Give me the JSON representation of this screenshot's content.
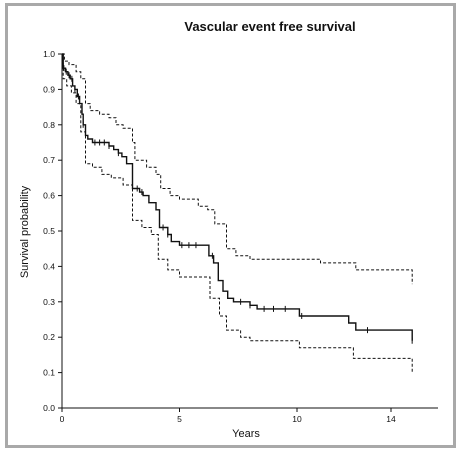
{
  "chart_data": {
    "type": "line",
    "title": "Vascular event free survival",
    "xlabel": "Years",
    "ylabel": "Survival probability",
    "xlim": [
      0,
      16
    ],
    "ylim": [
      0,
      1.0
    ],
    "x_ticks": [
      0,
      5,
      10,
      14
    ],
    "y_ticks": [
      0,
      0.1,
      0.2,
      0.3,
      0.4,
      0.5,
      0.6,
      0.7,
      0.8,
      0.9,
      1.0
    ],
    "grid": false,
    "legend": "none",
    "series": [
      {
        "role": "estimate",
        "style": "solid",
        "color": "#111111",
        "points": [
          [
            0,
            1.0
          ],
          [
            0.05,
            0.96
          ],
          [
            0.15,
            0.95
          ],
          [
            0.25,
            0.94
          ],
          [
            0.35,
            0.93
          ],
          [
            0.45,
            0.91
          ],
          [
            0.55,
            0.9
          ],
          [
            0.65,
            0.88
          ],
          [
            0.75,
            0.86
          ],
          [
            0.85,
            0.83
          ],
          [
            0.9,
            0.8
          ],
          [
            1.0,
            0.77
          ],
          [
            1.1,
            0.76
          ],
          [
            1.3,
            0.75
          ],
          [
            2.0,
            0.74
          ],
          [
            2.2,
            0.73
          ],
          [
            2.4,
            0.72
          ],
          [
            2.55,
            0.71
          ],
          [
            2.75,
            0.69
          ],
          [
            3.0,
            0.62
          ],
          [
            3.3,
            0.61
          ],
          [
            3.45,
            0.6
          ],
          [
            3.7,
            0.58
          ],
          [
            4.0,
            0.56
          ],
          [
            4.15,
            0.51
          ],
          [
            4.5,
            0.49
          ],
          [
            4.65,
            0.47
          ],
          [
            5.0,
            0.46
          ],
          [
            6.0,
            0.46
          ],
          [
            6.25,
            0.43
          ],
          [
            6.45,
            0.41
          ],
          [
            6.65,
            0.36
          ],
          [
            6.85,
            0.33
          ],
          [
            7.05,
            0.31
          ],
          [
            7.3,
            0.3
          ],
          [
            8.0,
            0.29
          ],
          [
            8.3,
            0.28
          ],
          [
            9.8,
            0.28
          ],
          [
            10.1,
            0.26
          ],
          [
            12.2,
            0.24
          ],
          [
            12.5,
            0.22
          ],
          [
            14.7,
            0.22
          ],
          [
            14.9,
            0.19
          ]
        ],
        "censor_marks": [
          0.08,
          0.18,
          0.3,
          0.42,
          0.55,
          0.7,
          0.9,
          1.4,
          1.6,
          1.8,
          2.0,
          2.4,
          3.2,
          3.4,
          4.3,
          4.5,
          5.1,
          5.4,
          5.7,
          6.4,
          7.6,
          8.0,
          8.6,
          9.0,
          9.5,
          10.2,
          13.0,
          14.9
        ]
      },
      {
        "role": "upper-confidence",
        "style": "dashed",
        "color": "#111111",
        "points": [
          [
            0,
            1.0
          ],
          [
            0.1,
            0.98
          ],
          [
            0.3,
            0.97
          ],
          [
            0.6,
            0.95
          ],
          [
            0.8,
            0.93
          ],
          [
            1.0,
            0.86
          ],
          [
            1.2,
            0.84
          ],
          [
            1.6,
            0.83
          ],
          [
            2.0,
            0.82
          ],
          [
            2.3,
            0.8
          ],
          [
            2.6,
            0.79
          ],
          [
            3.0,
            0.75
          ],
          [
            3.1,
            0.7
          ],
          [
            3.6,
            0.68
          ],
          [
            4.0,
            0.66
          ],
          [
            4.2,
            0.62
          ],
          [
            4.6,
            0.6
          ],
          [
            5.0,
            0.59
          ],
          [
            5.8,
            0.57
          ],
          [
            6.2,
            0.56
          ],
          [
            6.5,
            0.52
          ],
          [
            7.0,
            0.45
          ],
          [
            7.4,
            0.43
          ],
          [
            8.0,
            0.42
          ],
          [
            11.0,
            0.41
          ],
          [
            12.5,
            0.39
          ],
          [
            14.9,
            0.37
          ],
          [
            14.9,
            0.35
          ]
        ]
      },
      {
        "role": "lower-confidence",
        "style": "dashed",
        "color": "#111111",
        "points": [
          [
            0,
            1.0
          ],
          [
            0.05,
            0.93
          ],
          [
            0.2,
            0.91
          ],
          [
            0.4,
            0.89
          ],
          [
            0.6,
            0.86
          ],
          [
            0.8,
            0.78
          ],
          [
            1.0,
            0.69
          ],
          [
            1.3,
            0.68
          ],
          [
            1.7,
            0.66
          ],
          [
            2.1,
            0.65
          ],
          [
            2.6,
            0.63
          ],
          [
            3.0,
            0.53
          ],
          [
            3.4,
            0.51
          ],
          [
            3.8,
            0.49
          ],
          [
            4.1,
            0.42
          ],
          [
            4.5,
            0.39
          ],
          [
            5.0,
            0.37
          ],
          [
            5.6,
            0.37
          ],
          [
            6.3,
            0.31
          ],
          [
            6.7,
            0.26
          ],
          [
            7.0,
            0.22
          ],
          [
            7.6,
            0.2
          ],
          [
            8.0,
            0.19
          ],
          [
            10.1,
            0.17
          ],
          [
            12.4,
            0.14
          ],
          [
            14.9,
            0.12
          ],
          [
            14.9,
            0.1
          ]
        ]
      }
    ]
  }
}
